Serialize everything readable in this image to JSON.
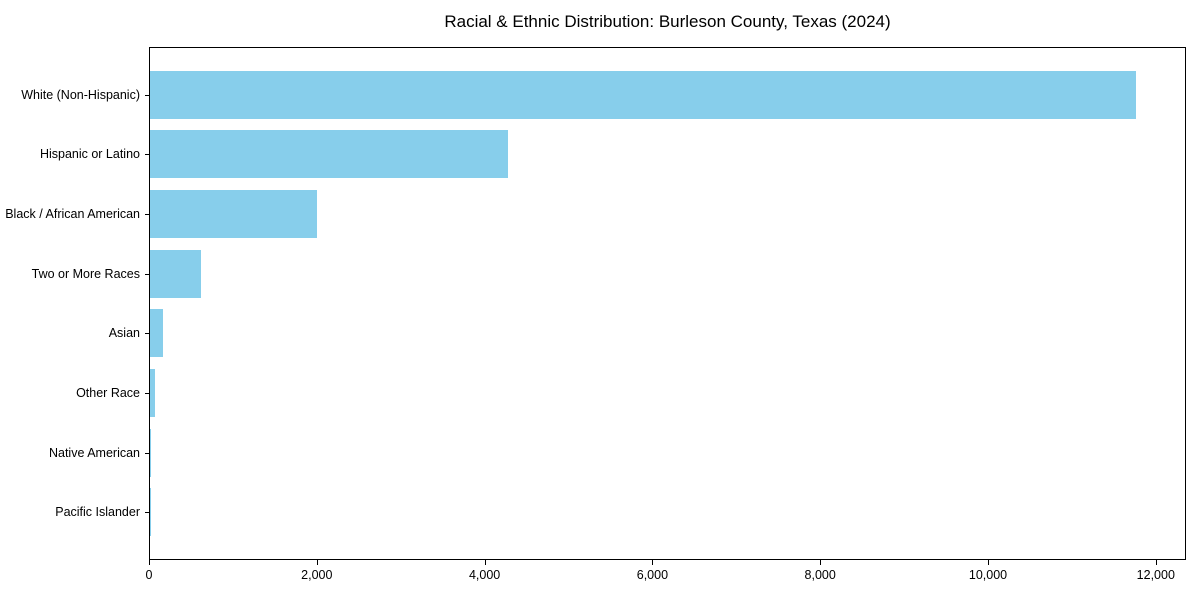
{
  "chart_data": {
    "type": "bar",
    "orientation": "horizontal",
    "title": "Racial & Ethnic Distribution: Burleson County, Texas (2024)",
    "xlabel": "",
    "ylabel": "",
    "categories": [
      "White (Non-Hispanic)",
      "Hispanic or Latino",
      "Black / African American",
      "Two or More Races",
      "Asian",
      "Other Race",
      "Native American",
      "Pacific Islander"
    ],
    "values": [
      11780,
      4270,
      2000,
      610,
      150,
      65,
      15,
      5
    ],
    "xlim": [
      0,
      12360
    ],
    "x_ticks": [
      0,
      2000,
      4000,
      6000,
      8000,
      10000,
      12000
    ],
    "x_tick_labels": [
      "0",
      "2,000",
      "4,000",
      "6,000",
      "8,000",
      "10,000",
      "12,000"
    ],
    "bar_color": "#87CEEB",
    "grid": false,
    "legend": null
  }
}
